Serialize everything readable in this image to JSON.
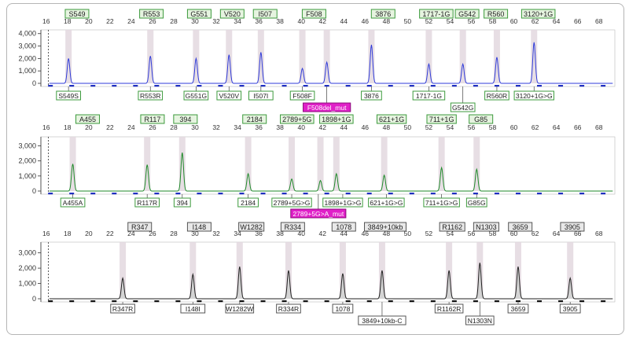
{
  "panels": [
    {
      "id": "panel-1",
      "color": "#2f3bd8",
      "fill": null,
      "labelFill": "#e6f4e0",
      "labelStroke": "#3c9a3c",
      "top_bins": [
        {
          "text": "S549",
          "x": 18.9
        },
        {
          "text": "R553",
          "x": 25.9
        },
        {
          "text": "G551",
          "x": 30.4
        },
        {
          "text": "V520",
          "x": 33.5
        },
        {
          "text": "I507",
          "x": 36.6
        },
        {
          "text": "F508",
          "x": 41.2
        },
        {
          "text": "3876",
          "x": 47.7
        },
        {
          "text": "1717-1G",
          "x": 52.7
        },
        {
          "text": "G542",
          "x": 55.6
        },
        {
          "text": "R560",
          "x": 58.3
        },
        {
          "text": "3120+1G",
          "x": 62.3
        }
      ],
      "peaks": [
        {
          "x": 18.1,
          "h": 2000
        },
        {
          "x": 25.8,
          "h": 2200
        },
        {
          "x": 30.1,
          "h": 2000
        },
        {
          "x": 33.2,
          "h": 2300
        },
        {
          "x": 36.2,
          "h": 2500
        },
        {
          "x": 40.1,
          "h": 1200
        },
        {
          "x": 42.4,
          "h": 1700
        },
        {
          "x": 46.6,
          "h": 3100
        },
        {
          "x": 52.0,
          "h": 1550
        },
        {
          "x": 55.2,
          "h": 1550
        },
        {
          "x": 58.4,
          "h": 2100
        },
        {
          "x": 61.9,
          "h": 3300
        }
      ],
      "bottom_labels": [
        {
          "text": "S549S",
          "x": 18.1,
          "row": 0,
          "mut": false
        },
        {
          "text": "R553R",
          "x": 25.8,
          "row": 0,
          "mut": false
        },
        {
          "text": "G551G",
          "x": 30.1,
          "row": 0,
          "mut": false
        },
        {
          "text": "V520V",
          "x": 33.2,
          "row": 0,
          "mut": false
        },
        {
          "text": "I507I",
          "x": 36.2,
          "row": 0,
          "mut": false
        },
        {
          "text": "F508F",
          "x": 40.1,
          "row": 0,
          "mut": false
        },
        {
          "text": "F508del_mut",
          "x": 42.4,
          "row": 1,
          "mut": true
        },
        {
          "text": "3876",
          "x": 46.6,
          "row": 0,
          "mut": false
        },
        {
          "text": "1717-1G",
          "x": 52.0,
          "row": 0,
          "mut": false
        },
        {
          "text": "G542G",
          "x": 55.2,
          "row": 1,
          "mut": false
        },
        {
          "text": "R560R",
          "x": 58.4,
          "row": 0,
          "mut": false
        },
        {
          "text": "3120+1G>G",
          "x": 61.9,
          "row": 0,
          "mut": false
        }
      ]
    },
    {
      "id": "panel-2",
      "color": "#1f8a2a",
      "fill": null,
      "labelFill": "#e6f4e0",
      "labelStroke": "#3c9a3c",
      "top_bins": [
        {
          "text": "A455",
          "x": 19.9
        },
        {
          "text": "R117",
          "x": 26.0
        },
        {
          "text": "394",
          "x": 29.1
        },
        {
          "text": "2184",
          "x": 35.6
        },
        {
          "text": "2789+5G",
          "x": 39.6
        },
        {
          "text": "1898+1G",
          "x": 43.3
        },
        {
          "text": "621+1G",
          "x": 48.5
        },
        {
          "text": "711+1G",
          "x": 53.2
        },
        {
          "text": "G85",
          "x": 56.9
        }
      ],
      "peaks": [
        {
          "x": 18.5,
          "h": 1800
        },
        {
          "x": 25.5,
          "h": 1750
        },
        {
          "x": 28.8,
          "h": 2550
        },
        {
          "x": 35.0,
          "h": 1150
        },
        {
          "x": 39.1,
          "h": 800
        },
        {
          "x": 41.8,
          "h": 700
        },
        {
          "x": 43.3,
          "h": 1150
        },
        {
          "x": 47.8,
          "h": 1050
        },
        {
          "x": 53.2,
          "h": 1550
        },
        {
          "x": 56.5,
          "h": 1450
        }
      ],
      "bottom_labels": [
        {
          "text": "A455A",
          "x": 18.5,
          "row": 0,
          "mut": false
        },
        {
          "text": "R117R",
          "x": 25.5,
          "row": 0,
          "mut": false
        },
        {
          "text": "394",
          "x": 28.8,
          "row": 0,
          "mut": false
        },
        {
          "text": "2184",
          "x": 35.0,
          "row": 0,
          "mut": false
        },
        {
          "text": "2789+5G>G",
          "x": 39.1,
          "row": 0,
          "mut": false
        },
        {
          "text": "2789+5G>A_mut",
          "x": 41.6,
          "row": 1,
          "mut": true
        },
        {
          "text": "1898+1G>G",
          "x": 43.9,
          "row": 0,
          "mut": false
        },
        {
          "text": "621+1G>G",
          "x": 48.0,
          "row": 0,
          "mut": false
        },
        {
          "text": "711+1G>G",
          "x": 53.2,
          "row": 0,
          "mut": false
        },
        {
          "text": "G85G",
          "x": 56.5,
          "row": 0,
          "mut": false
        }
      ]
    },
    {
      "id": "panel-3",
      "color": "#222222",
      "fill": "#d4d4d4",
      "labelFill": "#e8e8e8",
      "labelStroke": "#555555",
      "top_bins": [
        {
          "text": "R347",
          "x": 24.8
        },
        {
          "text": "I148",
          "x": 30.4
        },
        {
          "text": "W1282",
          "x": 35.3
        },
        {
          "text": "R334",
          "x": 39.2
        },
        {
          "text": "1078",
          "x": 44.0
        },
        {
          "text": "3849+10kb",
          "x": 47.9
        },
        {
          "text": "R1162",
          "x": 54.2
        },
        {
          "text": "N1303",
          "x": 57.4
        },
        {
          "text": "3659",
          "x": 60.6
        },
        {
          "text": "3905",
          "x": 65.5
        }
      ],
      "peaks": [
        {
          "x": 23.2,
          "h": 1350
        },
        {
          "x": 29.8,
          "h": 1600
        },
        {
          "x": 34.2,
          "h": 2100
        },
        {
          "x": 38.8,
          "h": 1850
        },
        {
          "x": 43.9,
          "h": 1650
        },
        {
          "x": 47.6,
          "h": 1850
        },
        {
          "x": 53.9,
          "h": 1850
        },
        {
          "x": 56.8,
          "h": 2350
        },
        {
          "x": 60.4,
          "h": 2100
        },
        {
          "x": 65.3,
          "h": 1350
        }
      ],
      "bottom_labels": [
        {
          "text": "R347R",
          "x": 23.2,
          "row": 0,
          "mut": false
        },
        {
          "text": "I148I",
          "x": 29.8,
          "row": 0,
          "mut": false
        },
        {
          "text": "W1282W",
          "x": 34.2,
          "row": 0,
          "mut": false
        },
        {
          "text": "R334R",
          "x": 38.8,
          "row": 0,
          "mut": false
        },
        {
          "text": "1078",
          "x": 43.9,
          "row": 0,
          "mut": false
        },
        {
          "text": "3849+10kb-C",
          "x": 47.6,
          "row": 1,
          "mut": false
        },
        {
          "text": "R1162R",
          "x": 53.9,
          "row": 0,
          "mut": false
        },
        {
          "text": "N1303N",
          "x": 56.8,
          "row": 1,
          "mut": false
        },
        {
          "text": "3659",
          "x": 60.4,
          "row": 0,
          "mut": false
        },
        {
          "text": "3905",
          "x": 65.3,
          "row": 0,
          "mut": false
        }
      ]
    }
  ],
  "x_axis": {
    "min": 15.5,
    "max": 69.5,
    "ticks": [
      16,
      18,
      20,
      22,
      24,
      26,
      28,
      30,
      32,
      34,
      36,
      38,
      40,
      42,
      44,
      46,
      48,
      50,
      52,
      54,
      56,
      58,
      60,
      62,
      64,
      66,
      68
    ]
  },
  "y_axis": {
    "min": 0,
    "max": 4000,
    "ticks": [
      0,
      1000,
      2000,
      3000,
      4000
    ],
    "tick_labels": [
      "0",
      "1,000",
      "2,000",
      "3,000",
      "4,000"
    ]
  },
  "panel_y_max": [
    4300,
    3600,
    3700
  ],
  "mut_color": "#e020c8"
}
